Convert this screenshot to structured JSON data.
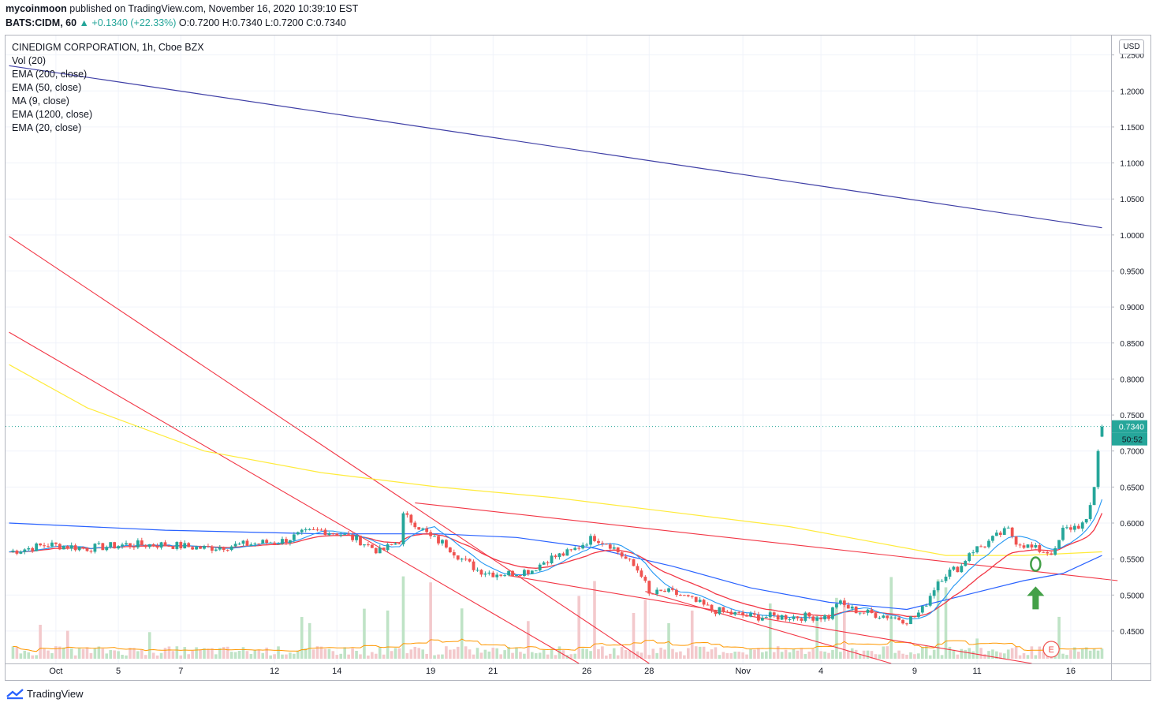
{
  "header": {
    "publisher": "mycoinmoon",
    "published_text": "published on TradingView.com, November 16, 2020 10:39:10 EST",
    "symbol": "BATS:CIDM, 60",
    "change": "▲ +0.1340 (+22.33%)",
    "ohlc": "O:0.7200 H:0.7340 L:0.7200 C:0.7340"
  },
  "legend": [
    "CINEDIGM CORPORATION, 1h, Cboe BZX",
    "Vol (20)",
    "EMA (200, close)",
    "EMA (50, close)",
    "MA (9, close)",
    "EMA (1200, close)",
    "EMA (20, close)"
  ],
  "footer": {
    "brand": "TradingView"
  },
  "price_axis": {
    "currency": "USD",
    "ticks": [
      "1.2500",
      "1.2000",
      "1.1500",
      "1.1000",
      "1.0500",
      "1.0000",
      "0.9500",
      "0.9000",
      "0.8500",
      "0.8000",
      "0.7500",
      "0.7000",
      "0.6500",
      "0.6000",
      "0.5500",
      "0.5000",
      "0.4500"
    ],
    "last_price": "0.7340",
    "countdown": "50:52"
  },
  "colors": {
    "up": "#26a69a",
    "down": "#ef5350",
    "ema200": "#ffeb3b",
    "ema50": "#2962ff",
    "ma9": "#2196f3",
    "ema1200": "#3f3fa6",
    "ema20": "#f23645",
    "trendline": "#f23645",
    "vol_up": "#bfe3c6",
    "vol_down": "#f3c9cc",
    "vol_ma": "#ff9800",
    "arrow": "#43a047"
  },
  "chart_data": {
    "type": "candlestick",
    "title": "CINEDIGM CORPORATION, 1h, Cboe BZX",
    "x_tick_labels": [
      {
        "label": "Oct",
        "bar": 12
      },
      {
        "label": "5",
        "bar": 28
      },
      {
        "label": "7",
        "bar": 44
      },
      {
        "label": "12",
        "bar": 68
      },
      {
        "label": "14",
        "bar": 84
      },
      {
        "label": "19",
        "bar": 108
      },
      {
        "label": "21",
        "bar": 124
      },
      {
        "label": "26",
        "bar": 148
      },
      {
        "label": "28",
        "bar": 164
      },
      {
        "label": "Nov",
        "bar": 188
      },
      {
        "label": "4",
        "bar": 208
      },
      {
        "label": "9",
        "bar": 232
      },
      {
        "label": "11",
        "bar": 248
      },
      {
        "label": "16",
        "bar": 272
      }
    ],
    "ylim": [
      0.405,
      1.277
    ],
    "total_bars": 280,
    "price_anchors": [
      [
        0,
        0.56
      ],
      [
        10,
        0.57
      ],
      [
        20,
        0.565
      ],
      [
        30,
        0.57
      ],
      [
        40,
        0.57
      ],
      [
        50,
        0.565
      ],
      [
        60,
        0.57
      ],
      [
        70,
        0.575
      ],
      [
        75,
        0.585
      ],
      [
        80,
        0.59
      ],
      [
        85,
        0.585
      ],
      [
        90,
        0.575
      ],
      [
        95,
        0.56
      ],
      [
        100,
        0.575
      ],
      [
        101,
        0.61
      ],
      [
        104,
        0.6
      ],
      [
        108,
        0.58
      ],
      [
        112,
        0.57
      ],
      [
        116,
        0.55
      ],
      [
        120,
        0.535
      ],
      [
        124,
        0.53
      ],
      [
        128,
        0.53
      ],
      [
        134,
        0.535
      ],
      [
        138,
        0.55
      ],
      [
        144,
        0.56
      ],
      [
        148,
        0.575
      ],
      [
        150,
        0.58
      ],
      [
        154,
        0.57
      ],
      [
        158,
        0.55
      ],
      [
        162,
        0.53
      ],
      [
        164,
        0.5
      ],
      [
        168,
        0.505
      ],
      [
        172,
        0.5
      ],
      [
        176,
        0.49
      ],
      [
        180,
        0.48
      ],
      [
        184,
        0.475
      ],
      [
        190,
        0.47
      ],
      [
        196,
        0.47
      ],
      [
        202,
        0.47
      ],
      [
        206,
        0.47
      ],
      [
        210,
        0.47
      ],
      [
        212,
        0.49
      ],
      [
        216,
        0.48
      ],
      [
        220,
        0.475
      ],
      [
        226,
        0.47
      ],
      [
        230,
        0.465
      ],
      [
        232,
        0.47
      ],
      [
        234,
        0.48
      ],
      [
        236,
        0.5
      ],
      [
        238,
        0.52
      ],
      [
        240,
        0.53
      ],
      [
        244,
        0.54
      ],
      [
        246,
        0.56
      ],
      [
        250,
        0.57
      ],
      [
        254,
        0.585
      ],
      [
        256,
        0.59
      ],
      [
        258,
        0.575
      ],
      [
        262,
        0.565
      ],
      [
        266,
        0.56
      ],
      [
        268,
        0.56
      ],
      [
        270,
        0.59
      ],
      [
        273,
        0.595
      ],
      [
        276,
        0.6
      ],
      [
        278,
        0.65
      ],
      [
        279,
        0.7
      ],
      [
        280,
        0.734
      ]
    ],
    "ema1200": [
      [
        0,
        1.235
      ],
      [
        280,
        1.01
      ]
    ],
    "ema200": [
      [
        0,
        0.82
      ],
      [
        20,
        0.76
      ],
      [
        50,
        0.7
      ],
      [
        80,
        0.67
      ],
      [
        110,
        0.65
      ],
      [
        140,
        0.635
      ],
      [
        170,
        0.615
      ],
      [
        200,
        0.595
      ],
      [
        220,
        0.575
      ],
      [
        240,
        0.555
      ],
      [
        260,
        0.555
      ],
      [
        280,
        0.56
      ]
    ],
    "ema50": [
      [
        0,
        0.6
      ],
      [
        40,
        0.59
      ],
      [
        80,
        0.585
      ],
      [
        110,
        0.585
      ],
      [
        130,
        0.58
      ],
      [
        150,
        0.565
      ],
      [
        170,
        0.54
      ],
      [
        190,
        0.51
      ],
      [
        210,
        0.49
      ],
      [
        230,
        0.48
      ],
      [
        245,
        0.5
      ],
      [
        260,
        0.52
      ],
      [
        270,
        0.53
      ],
      [
        280,
        0.555
      ]
    ],
    "trendlines": [
      [
        [
          0,
          0.998
        ],
        [
          164,
          0.405
        ]
      ],
      [
        [
          0,
          0.865
        ],
        [
          146,
          0.405
        ]
      ],
      [
        [
          104,
          0.628
        ],
        [
          284,
          0.52
        ]
      ],
      [
        [
          128,
          0.527
        ],
        [
          262,
          0.405
        ]
      ],
      [
        [
          163,
          0.505
        ],
        [
          226,
          0.405
        ]
      ]
    ],
    "annotations": [
      {
        "type": "circle",
        "bar": 263,
        "price": 0.543
      },
      {
        "type": "arrow",
        "bar": 263,
        "price": 0.512
      },
      {
        "type": "earnings",
        "label": "E",
        "bar": 267
      }
    ]
  }
}
